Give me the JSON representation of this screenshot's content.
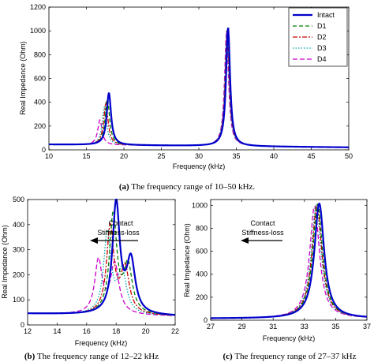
{
  "figure": {
    "series_styles": [
      {
        "name": "Intact",
        "color": "#0000cc",
        "dash": "",
        "width": 2.2
      },
      {
        "name": "D1",
        "color": "#008000",
        "dash": "5,3",
        "width": 1.3
      },
      {
        "name": "D2",
        "color": "#cc0000",
        "dash": "6,2,2,2",
        "width": 1.3
      },
      {
        "name": "D3",
        "color": "#00aaaa",
        "dash": "1.5,2",
        "width": 1.3
      },
      {
        "name": "D4",
        "color": "#cc00cc",
        "dash": "6,3",
        "width": 1.3
      }
    ]
  },
  "captions": {
    "a": {
      "letter": "(a)",
      "text": " The frequency range of 10–50 kHz."
    },
    "b": {
      "letter": "(b)",
      "text": " The frequency range of 12–22 kHz"
    },
    "c": {
      "letter": "(c)",
      "text": " The frequency range of 27–37 kHz"
    }
  },
  "annotations": {
    "b": [
      "Contact",
      "Stiffness-loss"
    ],
    "c": [
      "Contact",
      "Stiffness-loss"
    ]
  },
  "chart_data": [
    {
      "id": "a",
      "type": "line",
      "xlabel": "Frequency (kHz)",
      "ylabel": "Real Impedance (Ohm)",
      "xlim": [
        10,
        50
      ],
      "ylim": [
        0,
        1200
      ],
      "xticks": [
        10,
        15,
        20,
        25,
        30,
        35,
        40,
        45,
        50
      ],
      "yticks": [
        0,
        200,
        400,
        600,
        800,
        1000,
        1200
      ],
      "legend": "top-right",
      "series": [
        {
          "name": "Intact",
          "peak1": [
            18.0,
            440,
            0.35
          ],
          "peak2": [
            33.9,
            1000,
            0.32
          ]
        },
        {
          "name": "D1",
          "peak1": [
            17.8,
            390,
            0.35
          ],
          "peak2": [
            33.85,
            990,
            0.32
          ]
        },
        {
          "name": "D2",
          "peak1": [
            17.6,
            350,
            0.35
          ],
          "peak2": [
            33.8,
            985,
            0.32
          ]
        },
        {
          "name": "D3",
          "peak1": [
            17.4,
            320,
            0.35
          ],
          "peak2": [
            33.75,
            980,
            0.32
          ]
        },
        {
          "name": "D4",
          "peak1": [
            16.8,
            210,
            0.35
          ],
          "peak2": [
            33.7,
            970,
            0.32
          ]
        }
      ]
    },
    {
      "id": "b",
      "type": "line",
      "xlabel": "Frequency (kHz)",
      "ylabel": "Real Impedance (Ohm)",
      "xlim": [
        12,
        22
      ],
      "ylim": [
        0,
        500
      ],
      "xticks": [
        12,
        14,
        16,
        18,
        20,
        22
      ],
      "yticks": [
        0,
        100,
        200,
        300,
        400,
        500
      ],
      "series": [
        {
          "name": "Intact",
          "peak1": [
            18.0,
            440,
            0.3
          ],
          "peak2": [
            19.0,
            210,
            0.35
          ]
        },
        {
          "name": "D1",
          "peak1": [
            17.8,
            395,
            0.3
          ],
          "peak2": [
            18.8,
            190,
            0.35
          ]
        },
        {
          "name": "D2",
          "peak1": [
            17.6,
            345,
            0.3
          ],
          "peak2": [
            18.6,
            180,
            0.35
          ]
        },
        {
          "name": "D3",
          "peak1": [
            17.4,
            320,
            0.3
          ],
          "peak2": [
            18.4,
            170,
            0.35
          ]
        },
        {
          "name": "D4",
          "peak1": [
            16.8,
            210,
            0.3
          ],
          "peak2": [
            17.9,
            200,
            0.35
          ]
        }
      ]
    },
    {
      "id": "c",
      "type": "line",
      "xlabel": "Frequency (kHz)",
      "ylabel": "Real Impedance (Ohm)",
      "xlim": [
        27,
        37
      ],
      "ylim": [
        0,
        1050
      ],
      "xticks": [
        27,
        29,
        31,
        33,
        35,
        37
      ],
      "yticks": [
        0,
        200,
        400,
        600,
        800,
        1000
      ],
      "series": [
        {
          "name": "Intact",
          "peak1": [
            33.95,
            1000,
            0.38
          ]
        },
        {
          "name": "D1",
          "peak1": [
            33.85,
            995,
            0.38
          ]
        },
        {
          "name": "D2",
          "peak1": [
            33.8,
            990,
            0.38
          ]
        },
        {
          "name": "D3",
          "peak1": [
            33.75,
            985,
            0.38
          ]
        },
        {
          "name": "D4",
          "peak1": [
            33.65,
            975,
            0.38
          ]
        }
      ]
    }
  ]
}
